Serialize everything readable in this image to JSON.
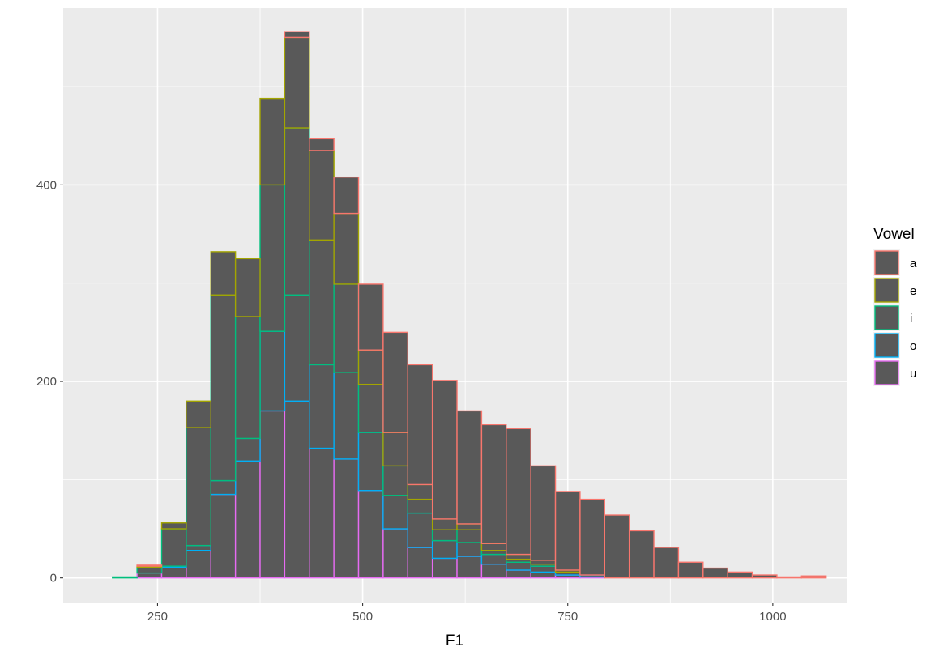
{
  "chart_data": {
    "type": "bar",
    "subtype": "stacked-histogram",
    "xlabel": "F1",
    "ylabel": "",
    "xlim": [
      135,
      1090
    ],
    "ylim": [
      -25,
      580
    ],
    "x_ticks": [
      250,
      500,
      750,
      1000
    ],
    "x_tick_labels": [
      "250",
      "500",
      "750",
      "1000"
    ],
    "y_ticks": [
      0,
      200,
      400
    ],
    "y_tick_labels": [
      "0",
      "200",
      "400"
    ],
    "grid": true,
    "panel_background": "#EBEBEB",
    "bar_fill": "#595959",
    "bin_width": 30,
    "bin_centers": [
      180,
      210,
      240,
      270,
      300,
      330,
      360,
      390,
      420,
      450,
      480,
      510,
      540,
      570,
      600,
      630,
      660,
      690,
      720,
      750,
      780,
      810,
      840,
      870,
      900,
      930,
      960,
      990,
      1020,
      1050
    ],
    "stacking_order": [
      "a",
      "e",
      "i",
      "o",
      "u"
    ],
    "series": [
      {
        "name": "u",
        "color": "#E76BF3",
        "values": [
          0,
          0,
          5,
          11,
          28,
          85,
          119,
          170,
          180,
          132,
          121,
          89,
          50,
          31,
          20,
          22,
          14,
          8,
          6,
          3,
          1,
          0,
          0,
          0,
          0,
          0,
          0,
          0,
          0,
          0
        ]
      },
      {
        "name": "o",
        "color": "#00B0F6",
        "values": [
          0,
          0,
          0,
          1,
          5,
          14,
          23,
          81,
          108,
          85,
          88,
          59,
          34,
          35,
          18,
          14,
          10,
          8,
          6,
          3,
          2,
          0,
          0,
          0,
          0,
          0,
          0,
          0,
          0,
          0
        ]
      },
      {
        "name": "i",
        "color": "#00BF7D",
        "values": [
          0,
          1,
          6,
          38,
          120,
          189,
          124,
          149,
          170,
          127,
          90,
          49,
          30,
          14,
          11,
          13,
          4,
          3,
          2,
          0,
          0,
          0,
          0,
          0,
          0,
          0,
          0,
          0,
          0,
          0
        ]
      },
      {
        "name": "e",
        "color": "#A3A500",
        "values": [
          0,
          0,
          1,
          6,
          27,
          44,
          59,
          88,
          92,
          91,
          72,
          35,
          34,
          15,
          11,
          6,
          7,
          5,
          4,
          2,
          0,
          0,
          0,
          0,
          0,
          0,
          0,
          0,
          0,
          0
        ]
      },
      {
        "name": "a",
        "color": "#F8766D",
        "values": [
          0,
          0,
          1,
          0,
          0,
          0,
          0,
          0,
          6,
          12,
          37,
          67,
          102,
          122,
          141,
          115,
          121,
          128,
          96,
          80,
          77,
          64,
          48,
          31,
          16,
          10,
          6,
          3,
          1,
          2
        ]
      }
    ],
    "legend": {
      "title": "Vowel",
      "position": "right",
      "entries": [
        {
          "label": "a",
          "color": "#F8766D"
        },
        {
          "label": "e",
          "color": "#A3A500"
        },
        {
          "label": "i",
          "color": "#00BF7D"
        },
        {
          "label": "o",
          "color": "#00B0F6"
        },
        {
          "label": "u",
          "color": "#E76BF3"
        }
      ]
    }
  }
}
